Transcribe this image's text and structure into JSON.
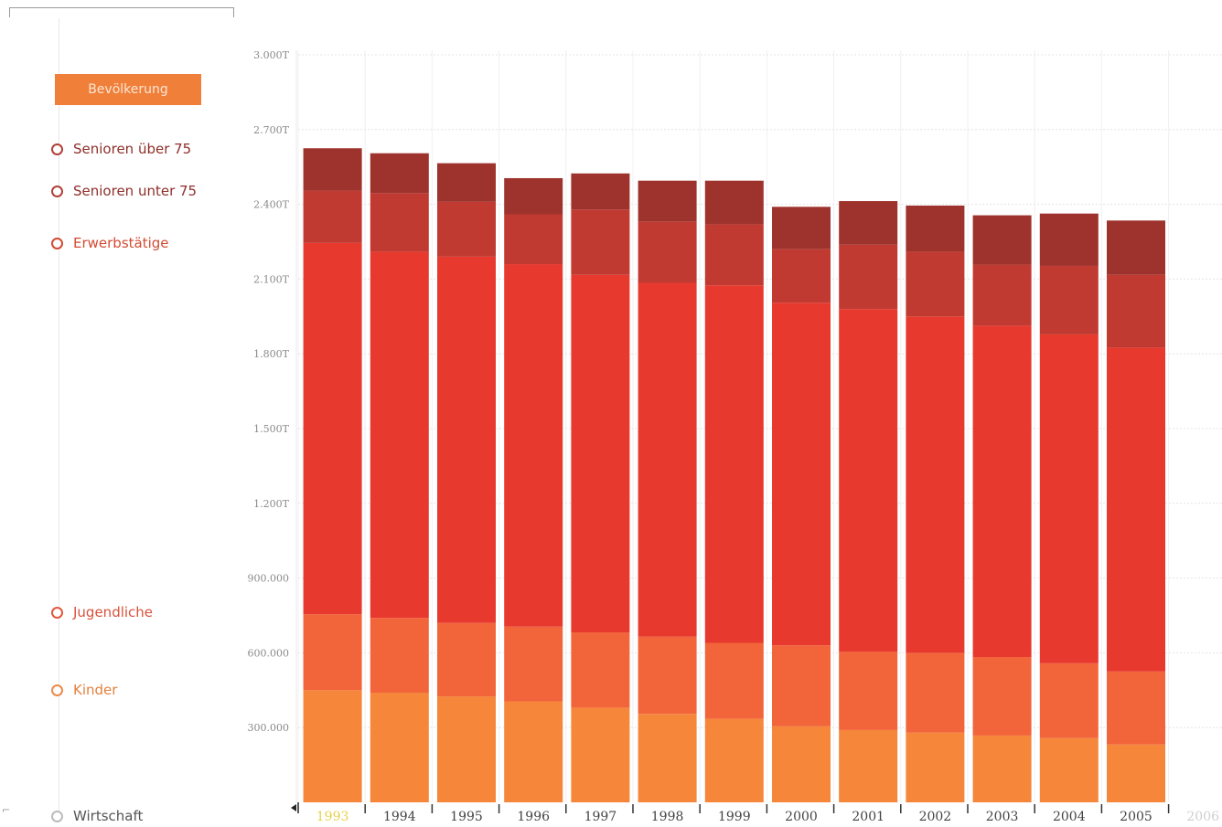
{
  "sidebar": {
    "category_button": "Bevölkerung",
    "items": [
      {
        "label": "Senioren über 75",
        "color": "#a13a32"
      },
      {
        "label": "Senioren unter 75",
        "color": "#a13a32"
      },
      {
        "label": "Erwerbstätige",
        "color": "#d24b32"
      },
      {
        "label": "Jugendliche",
        "color": "#d8523a"
      },
      {
        "label": "Kinder",
        "color": "#e3813f"
      },
      {
        "label": "Wirtschaft",
        "color": "#555555"
      }
    ]
  },
  "chart_data": {
    "type": "bar",
    "stacked": true,
    "categories": [
      "1993",
      "1994",
      "1995",
      "1996",
      "1997",
      "1998",
      "1999",
      "2000",
      "2001",
      "2002",
      "2003",
      "2004",
      "2005",
      "2006"
    ],
    "highlighted_category": "1993",
    "y_tick_labels": [
      "300.000",
      "600.000",
      "900.000",
      "1.200T",
      "1.500T",
      "1.800T",
      "2.100T",
      "2.400T",
      "2.700T",
      "3.000T"
    ],
    "y_tick_values": [
      300000,
      600000,
      900000,
      1200000,
      1500000,
      1800000,
      2100000,
      2400000,
      2700000,
      3000000
    ],
    "ylim": [
      0,
      3000000
    ],
    "grid": true,
    "series": [
      {
        "name": "Kinder",
        "color": "#f5863a",
        "values": [
          450000,
          440000,
          425000,
          405000,
          380000,
          355000,
          335000,
          305000,
          290000,
          280000,
          268000,
          258000,
          232000,
          null
        ]
      },
      {
        "name": "Jugendliche",
        "color": "#f2643a",
        "values": [
          305000,
          300000,
          295000,
          300000,
          302000,
          310000,
          305000,
          325000,
          315000,
          320000,
          315000,
          300000,
          293000,
          null
        ]
      },
      {
        "name": "Erwerbstätige",
        "color": "#e8392f",
        "values": [
          1490000,
          1470000,
          1470000,
          1455000,
          1435000,
          1420000,
          1435000,
          1375000,
          1375000,
          1350000,
          1330000,
          1320000,
          1300000,
          null
        ]
      },
      {
        "name": "Senioren unter 75",
        "color": "#c03a31",
        "values": [
          210000,
          235000,
          220000,
          200000,
          262000,
          245000,
          245000,
          215000,
          258000,
          260000,
          245000,
          275000,
          292000,
          null
        ]
      },
      {
        "name": "Senioren über 75",
        "color": "#9e332d",
        "values": [
          170000,
          160000,
          155000,
          145000,
          145000,
          165000,
          175000,
          170000,
          175000,
          185000,
          198000,
          210000,
          218000,
          null
        ]
      }
    ]
  }
}
